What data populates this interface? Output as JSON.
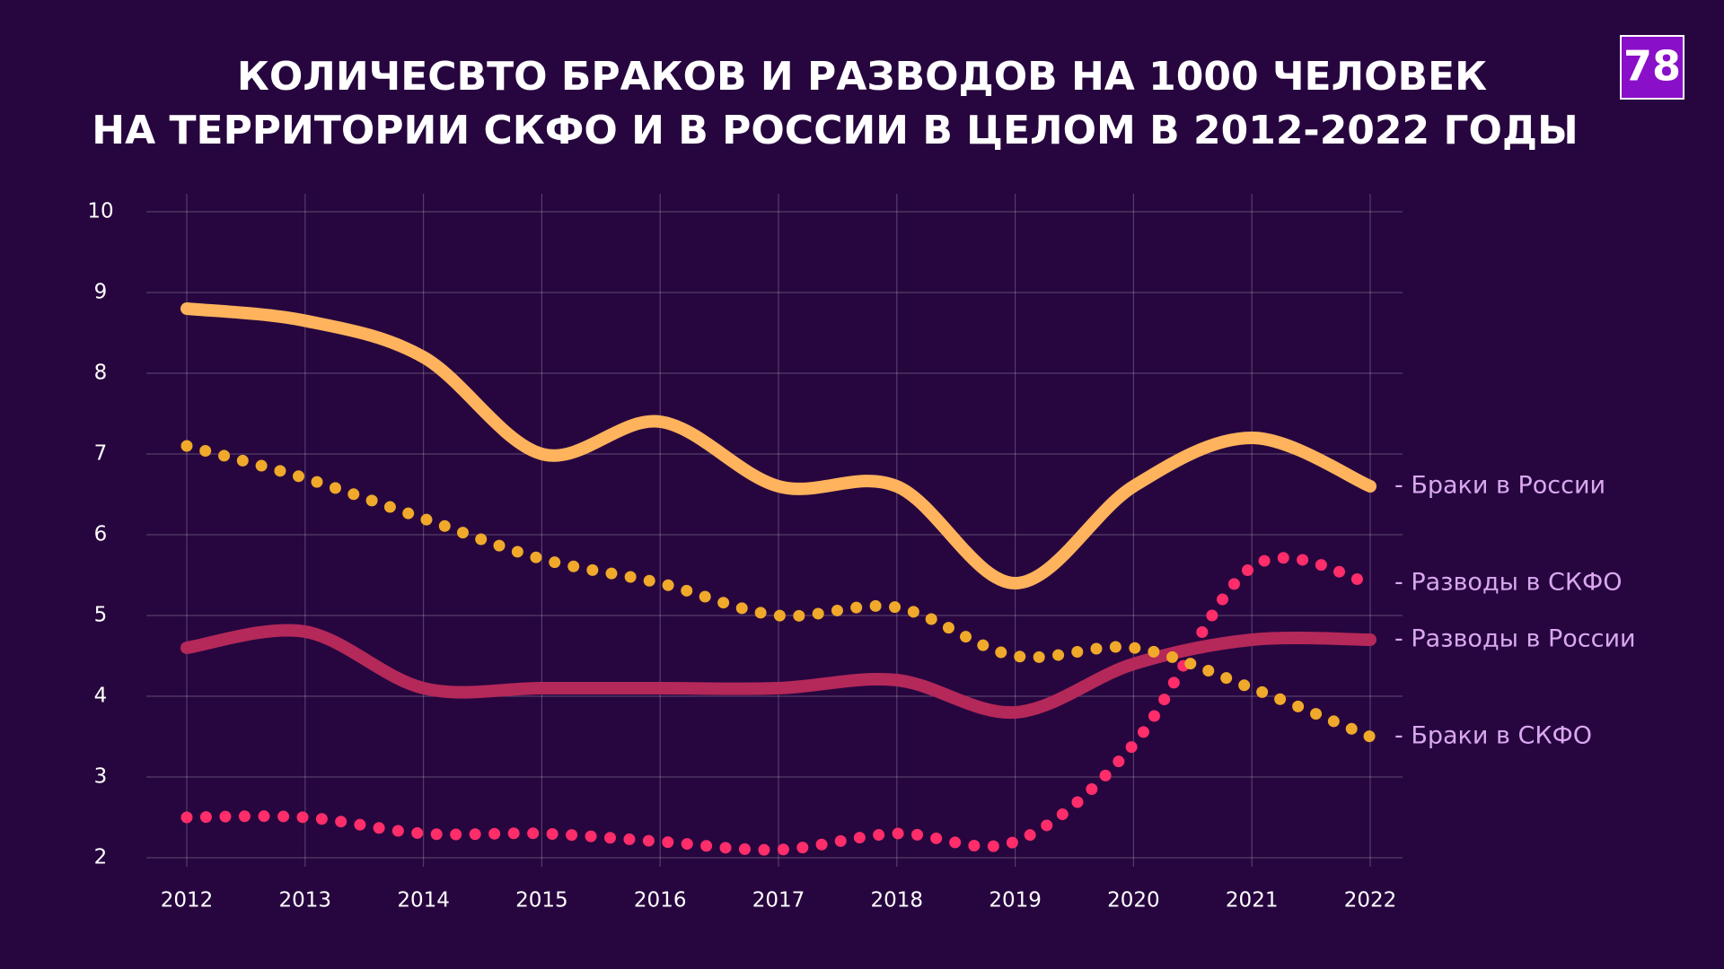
{
  "logo": "78",
  "chart_data": {
    "type": "line",
    "title": [
      "КОЛИЧЕСВТО БРАКОВ И РАЗВОДОВ НА 1000 ЧЕЛОВЕК",
      "НА ТЕРРИТОРИИ СКФО И В РОССИИ В ЦЕЛОМ В 2012-2022 ГОДЫ"
    ],
    "x": [
      2012,
      2013,
      2014,
      2015,
      2016,
      2017,
      2018,
      2019,
      2020,
      2021,
      2022
    ],
    "xlim": [
      2012,
      2022
    ],
    "xticks": [
      2012,
      2013,
      2014,
      2015,
      2016,
      2017,
      2018,
      2019,
      2020,
      2021,
      2022
    ],
    "ylim": [
      2,
      10
    ],
    "yticks": [
      2,
      3,
      4,
      5,
      6,
      7,
      8,
      9,
      10
    ],
    "grid": true,
    "series": [
      {
        "name": "- Браки в России",
        "color": "#ffb35c",
        "style": "solid",
        "values": [
          8.8,
          8.65,
          8.2,
          7.0,
          7.4,
          6.6,
          6.6,
          5.4,
          6.6,
          7.2,
          6.6
        ]
      },
      {
        "name": "- Разводы в СКФО",
        "color": "#ff2d6a",
        "style": "dotted",
        "values": [
          2.5,
          2.5,
          2.3,
          2.3,
          2.2,
          2.1,
          2.3,
          2.2,
          3.4,
          5.6,
          5.4
        ]
      },
      {
        "name": "- Разводы в России",
        "color": "#b5285a",
        "style": "solid",
        "values": [
          4.6,
          4.8,
          4.1,
          4.1,
          4.1,
          4.1,
          4.2,
          3.8,
          4.4,
          4.7,
          4.7
        ]
      },
      {
        "name": "- Браки в СКФО",
        "color": "#f0a92a",
        "style": "dotted",
        "values": [
          7.1,
          6.7,
          6.2,
          5.7,
          5.4,
          5.0,
          5.1,
          4.5,
          4.6,
          4.1,
          3.5
        ]
      }
    ]
  }
}
